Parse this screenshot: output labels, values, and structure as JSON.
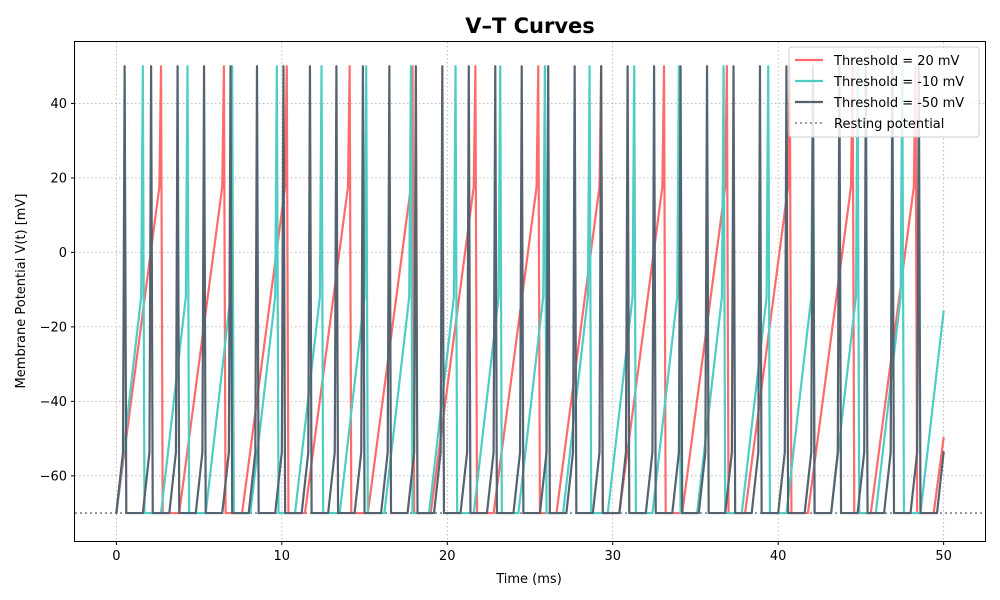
{
  "chart_data": {
    "type": "line",
    "title": "V–T Curves",
    "xlabel": "Time (ms)",
    "ylabel": "Membrane Potential V(t) [mV]",
    "xlim": [
      -2.5,
      52.5
    ],
    "ylim": [
      -77.5,
      56.5
    ],
    "xticks": [
      0,
      10,
      20,
      30,
      40,
      50
    ],
    "yticks": [
      -60,
      -40,
      -20,
      0,
      20,
      40
    ],
    "grid": true,
    "legend_position": "top-right",
    "model": {
      "resting_potential": -70,
      "spike_peak": 50,
      "refractory_ms": 1,
      "dt_ms": 0.1,
      "t_end_ms": 50
    },
    "series": [
      {
        "name": "Threshold = 20 mV",
        "threshold": 20,
        "color": "#ff6b6b",
        "rise_ms": 2.67,
        "style": "solid"
      },
      {
        "name": "Threshold = -10 mV",
        "threshold": -10,
        "color": "#4ecdc4",
        "rise_ms": 1.55,
        "style": "solid"
      },
      {
        "name": "Threshold = -50 mV",
        "threshold": -50,
        "color": "#556270",
        "rise_ms": 0.49,
        "style": "solid"
      }
    ],
    "reference_lines": [
      {
        "name": "Resting potential",
        "y": -70,
        "color": "#808080",
        "style": "dotted"
      }
    ]
  }
}
